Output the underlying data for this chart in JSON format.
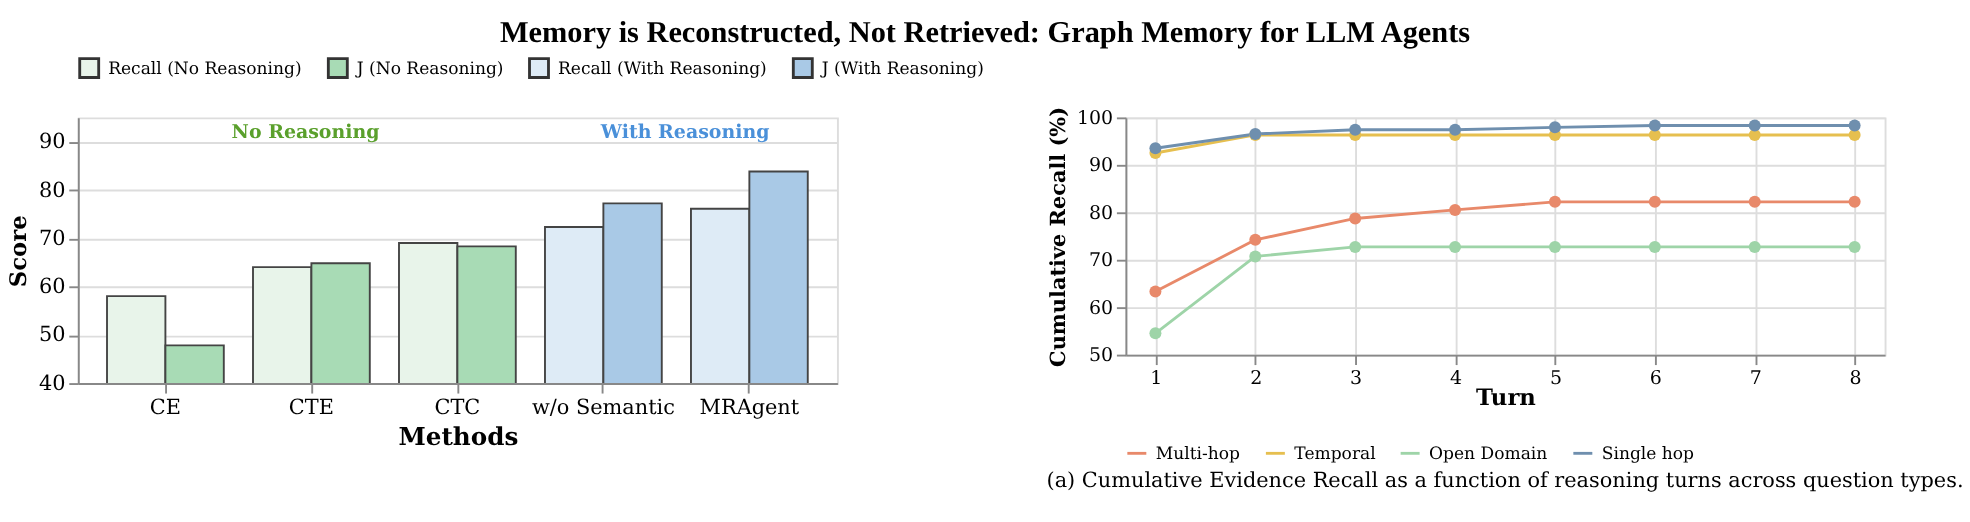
{
  "chart_data": [
    {
      "type": "bar",
      "title": "Memory is Reconstructed, Not Retrieved: Graph Memory for LLM Agents",
      "xlabel": "Methods",
      "ylabel": "Score",
      "categories": [
        "CE",
        "CTE",
        "CTC",
        "w/o Semantic",
        "MRAgent"
      ],
      "series": [
        {
          "name": "Recall (No Reasoning)",
          "color": "#e8f4ea",
          "values": [
            58,
            64,
            69,
            null,
            null
          ]
        },
        {
          "name": "J (No Reasoning)",
          "color": "#a8dbb5",
          "values": [
            47.8,
            64.8,
            68.3,
            null,
            null
          ]
        },
        {
          "name": "Recall (With Reasoning)",
          "color": "#deebf6",
          "values": [
            null,
            null,
            null,
            72.3,
            76.1
          ]
        },
        {
          "name": "J (With Reasoning)",
          "color": "#a9c9e6",
          "values": [
            null,
            null,
            null,
            77.2,
            83.8
          ]
        }
      ],
      "ylim": [
        40,
        95
      ],
      "yticks": [
        40,
        50,
        60,
        70,
        80,
        90
      ],
      "grid": "y",
      "legend": "top",
      "annotations": [
        "No Reasoning",
        "With Reasoning"
      ]
    },
    {
      "type": "line",
      "xlabel": "Turn",
      "ylabel": "Cumulative Recall (%)",
      "x": [
        1,
        2,
        3,
        4,
        5,
        6,
        7,
        8
      ],
      "series": [
        {
          "name": "Multi-hop",
          "color": "#e8896a",
          "values": [
            63.3,
            74.2,
            78.7,
            80.5,
            82.2,
            82.2,
            82.2,
            82.2
          ]
        },
        {
          "name": "Temporal",
          "color": "#e6bf4f",
          "values": [
            92.5,
            96.3,
            96.3,
            96.3,
            96.3,
            96.3,
            96.3,
            96.3
          ]
        },
        {
          "name": "Open Domain",
          "color": "#9ed4a8",
          "values": [
            54.5,
            70.7,
            72.7,
            72.7,
            72.7,
            72.7,
            72.7,
            72.7
          ]
        },
        {
          "name": "Single hop",
          "color": "#6f8fae",
          "values": [
            93.5,
            96.5,
            97.4,
            97.4,
            97.9,
            98.3,
            98.3,
            98.3
          ]
        }
      ],
      "xlim": [
        0.7,
        8.3
      ],
      "xticks": [
        1,
        2,
        3,
        4,
        5,
        6,
        7,
        8
      ],
      "ylim": [
        50,
        100
      ],
      "yticks": [
        50,
        60,
        70,
        80,
        90,
        100
      ],
      "grid": true,
      "marker": "circle",
      "line_style": "solid",
      "legend": "bottom",
      "annotations": [
        "(a) Cumulative Evidence Recall as a function of reasoning turns across question types."
      ]
    }
  ]
}
